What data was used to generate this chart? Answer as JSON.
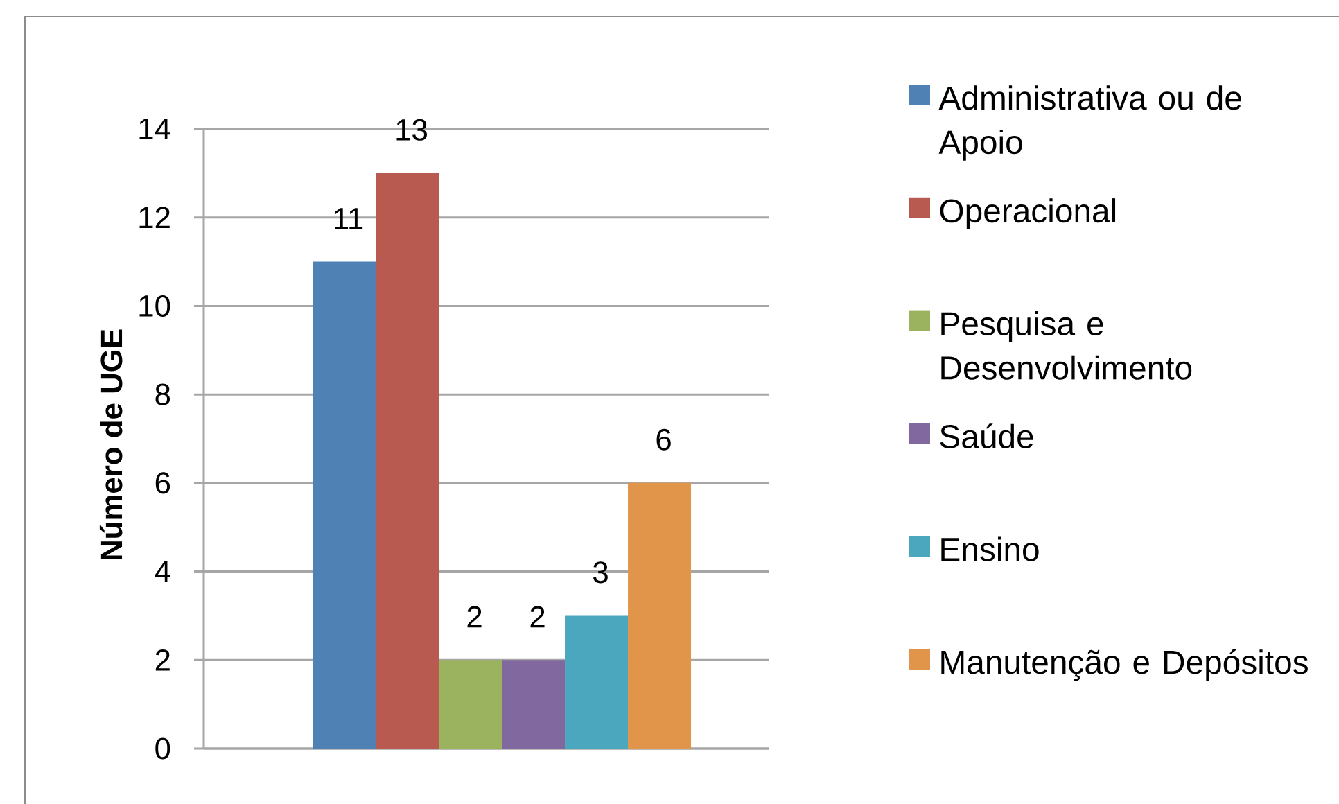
{
  "chart_data": {
    "type": "bar",
    "ylabel": "Número de UGE",
    "categories": [
      null
    ],
    "series": [
      {
        "name": "Administrativa ou de Apoio",
        "color": "#4f81b5",
        "values": [
          11
        ]
      },
      {
        "name": "Operacional",
        "color": "#b95a50",
        "values": [
          13
        ]
      },
      {
        "name": "Pesquisa e Desenvolvimento",
        "color": "#9bb35f",
        "values": [
          2
        ]
      },
      {
        "name": "Saúde",
        "color": "#8169a0",
        "values": [
          2
        ]
      },
      {
        "name": "Ensino",
        "color": "#4aa7bd",
        "values": [
          3
        ]
      },
      {
        "name": "Manutenção e Depósitos",
        "color": "#e0954b",
        "values": [
          6
        ]
      }
    ],
    "ylim": [
      0,
      14
    ],
    "yticks": [
      0,
      2,
      4,
      6,
      8,
      10,
      12,
      14
    ],
    "grid": "y",
    "legend": "right",
    "data_labels": true
  }
}
